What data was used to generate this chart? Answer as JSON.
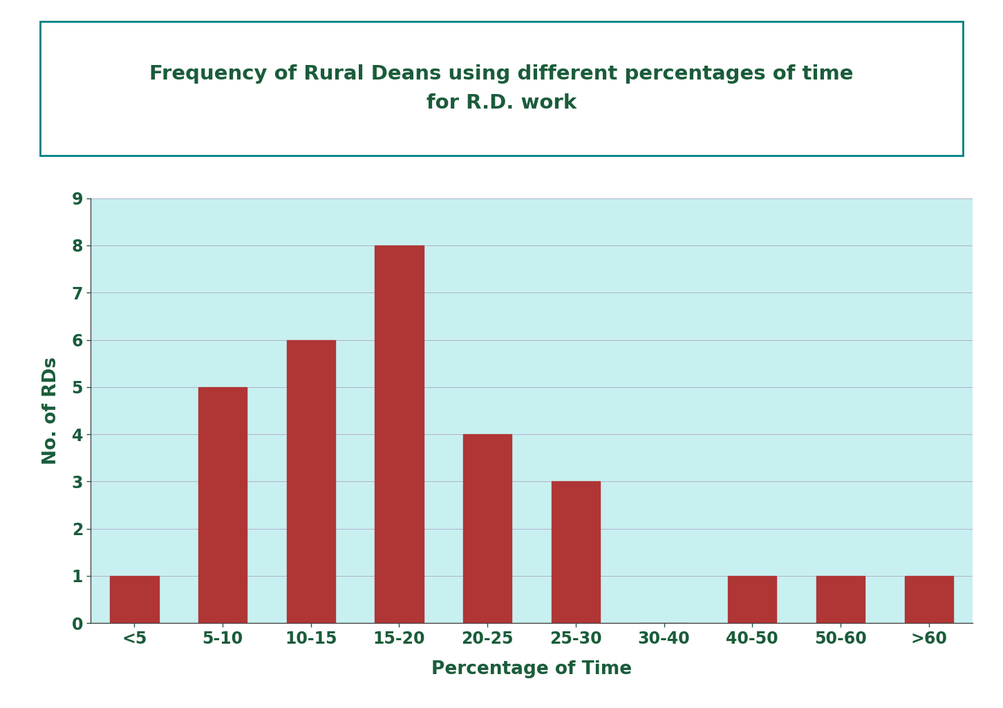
{
  "categories": [
    "<5",
    "5-10",
    "10-15",
    "15-20",
    "20-25",
    "25-30",
    "30-40",
    "40-50",
    "50-60",
    ">60"
  ],
  "values": [
    1,
    5,
    6,
    8,
    4,
    3,
    0,
    1,
    1,
    1
  ],
  "bar_color": "#b03535",
  "plot_bg_color": "#c8f0f0",
  "title_line1": "Frequency of Rural Deans using different percentages of time",
  "title_line2": "for R.D. work",
  "xlabel": "Percentage of Time",
  "ylabel": "No. of RDs",
  "ylim": [
    0,
    9
  ],
  "yticks": [
    0,
    1,
    2,
    3,
    4,
    5,
    6,
    7,
    8,
    9
  ],
  "title_color": "#1a5c3a",
  "axis_label_color": "#1a5c3a",
  "tick_label_color": "#1a5c3a",
  "title_fontsize": 21,
  "axis_label_fontsize": 19,
  "tick_fontsize": 17,
  "title_box_edge_color": "#008080",
  "grid_color": "#b0b0cc",
  "grid_linewidth": 0.7,
  "bar_width": 0.55
}
